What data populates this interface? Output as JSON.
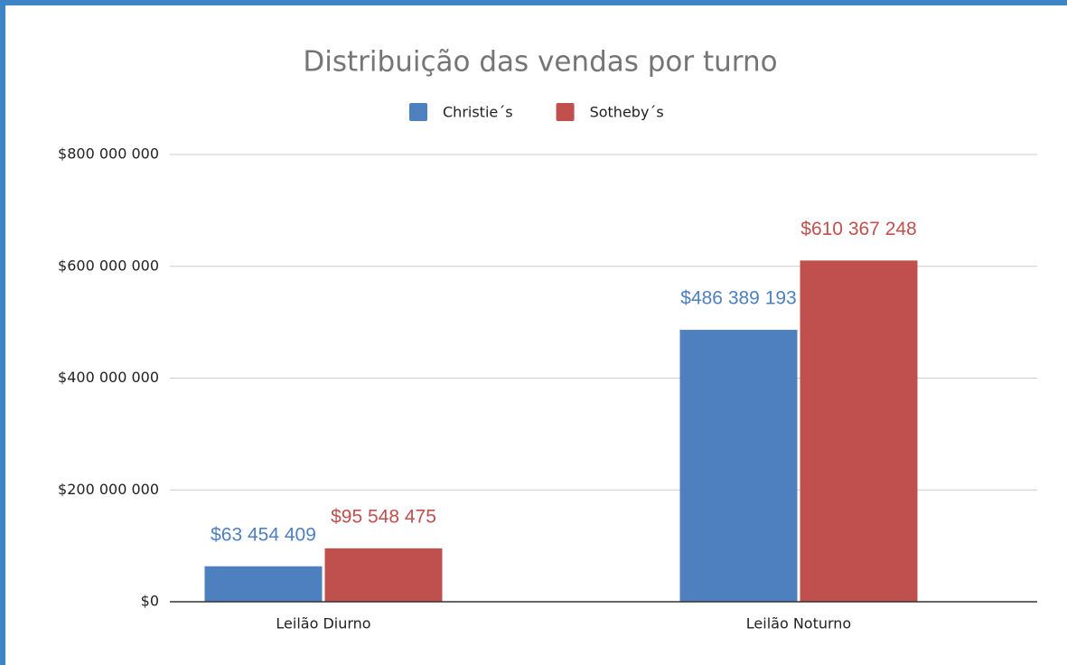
{
  "chart_data": {
    "type": "bar",
    "title": "Distribuição das vendas por turno",
    "categories": [
      "Leilão Diurno",
      "Leilão Noturno"
    ],
    "series": [
      {
        "name": "Christie´s",
        "color": "#4e80bf",
        "values": [
          63454409,
          486389193
        ],
        "value_labels": [
          "$63 454 409",
          "$486 389 193"
        ]
      },
      {
        "name": "Sotheby´s",
        "color": "#c0504d",
        "values": [
          95548475,
          610367248
        ],
        "value_labels": [
          "$95 548 475",
          "$610 367 248"
        ]
      }
    ],
    "ylim": [
      0,
      800000000
    ],
    "yticks": [
      {
        "value": 0,
        "label": "$0"
      },
      {
        "value": 200000000,
        "label": "$200 000 000"
      },
      {
        "value": 400000000,
        "label": "$400 000 000"
      },
      {
        "value": 600000000,
        "label": "$600 000 000"
      },
      {
        "value": 800000000,
        "label": "$800 000 000"
      }
    ],
    "grid": true,
    "legend": "top"
  }
}
